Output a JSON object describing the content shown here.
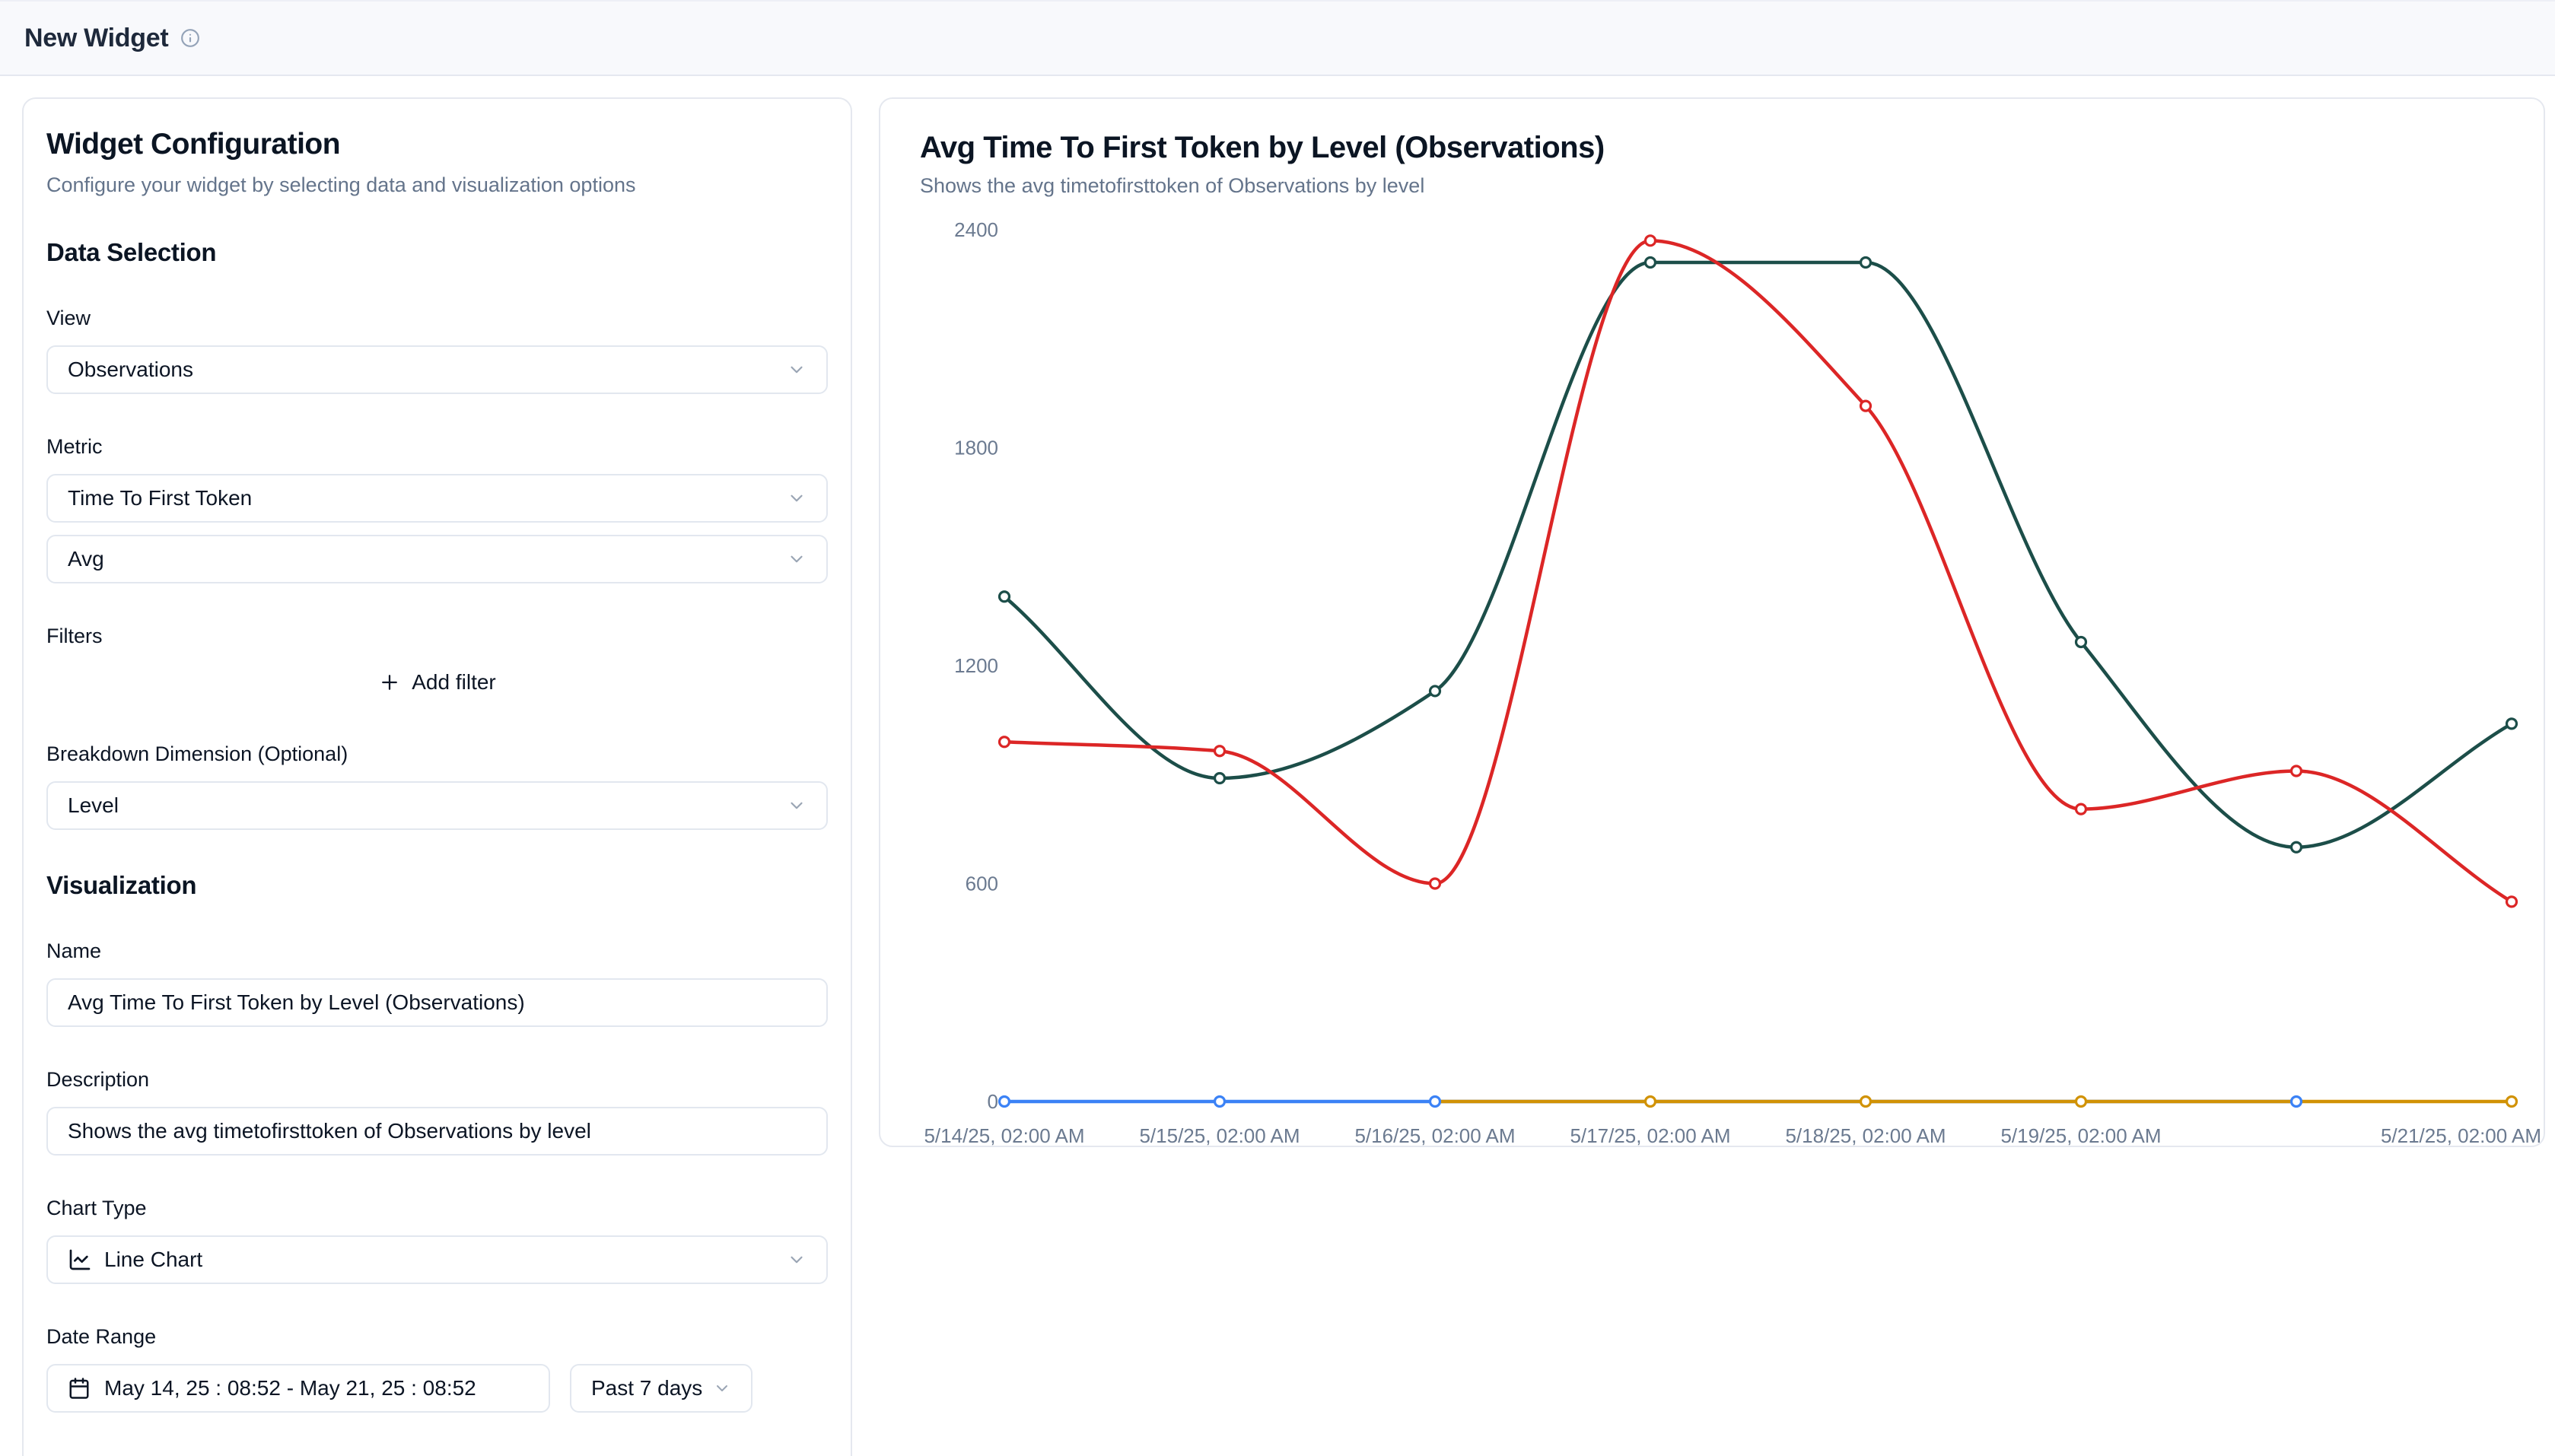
{
  "header": {
    "title": "New Widget"
  },
  "config_panel": {
    "title": "Widget Configuration",
    "subtitle": "Configure your widget by selecting data and visualization options",
    "data_selection": {
      "heading": "Data Selection",
      "view_label": "View",
      "view_value": "Observations",
      "metric_label": "Metric",
      "metric_value": "Time To First Token",
      "aggregation_value": "Avg",
      "filters_label": "Filters",
      "add_filter_label": "Add filter",
      "breakdown_label": "Breakdown Dimension (Optional)",
      "breakdown_value": "Level"
    },
    "visualization": {
      "heading": "Visualization",
      "name_label": "Name",
      "name_value": "Avg Time To First Token by Level (Observations)",
      "description_label": "Description",
      "description_value": "Shows the avg timetofirsttoken of Observations by level",
      "chart_type_label": "Chart Type",
      "chart_type_value": "Line Chart",
      "date_range_label": "Date Range",
      "date_range_value": "May 14, 25 : 08:52 - May 21, 25 : 08:52",
      "date_preset_value": "Past 7 days"
    }
  },
  "chart_panel": {
    "title": "Avg Time To First Token by Level (Observations)",
    "subtitle": "Shows the avg timetofirsttoken of Observations by level"
  },
  "chart_data": {
    "type": "line",
    "title": "Avg Time To First Token by Level (Observations)",
    "x_labels": [
      "5/14/25, 02:00 AM",
      "5/15/25, 02:00 AM",
      "5/16/25, 02:00 AM",
      "5/17/25, 02:00 AM",
      "5/18/25, 02:00 AM",
      "5/19/25, 02:00 AM",
      "",
      "5/21/25, 02:00 AM"
    ],
    "x_ticks_shown": [
      0,
      1,
      2,
      3,
      4,
      5,
      7
    ],
    "ylim": [
      0,
      2400
    ],
    "y_ticks": [
      0,
      600,
      1200,
      1800,
      2400
    ],
    "grid": false,
    "legend": false,
    "axis_text_color": "#6b7a90",
    "series": [
      {
        "name": "series-teal",
        "color": "#1c4e49",
        "smooth": true,
        "values": [
          1390,
          890,
          1130,
          2310,
          2310,
          1265,
          700,
          1040
        ],
        "markers": [
          0,
          1,
          2,
          3,
          4,
          5,
          6,
          7
        ]
      },
      {
        "name": "series-red",
        "color": "#dc2626",
        "smooth": true,
        "values": [
          990,
          965,
          600,
          2370,
          1915,
          805,
          910,
          550
        ],
        "markers": [
          0,
          1,
          2,
          3,
          4,
          5,
          6,
          7
        ]
      },
      {
        "name": "series-blue",
        "color": "#3b82f6",
        "smooth": false,
        "values": [
          0,
          0,
          0,
          null,
          null,
          null,
          0,
          null
        ],
        "markers": [
          0,
          1,
          2,
          6
        ]
      },
      {
        "name": "series-orange",
        "color": "#d19205",
        "smooth": false,
        "values": [
          null,
          null,
          0,
          0,
          0,
          0,
          0,
          0
        ],
        "markers": [
          3,
          4,
          5,
          7
        ]
      }
    ],
    "marker_draw_order": [
      0,
      1,
      3,
      2
    ]
  }
}
